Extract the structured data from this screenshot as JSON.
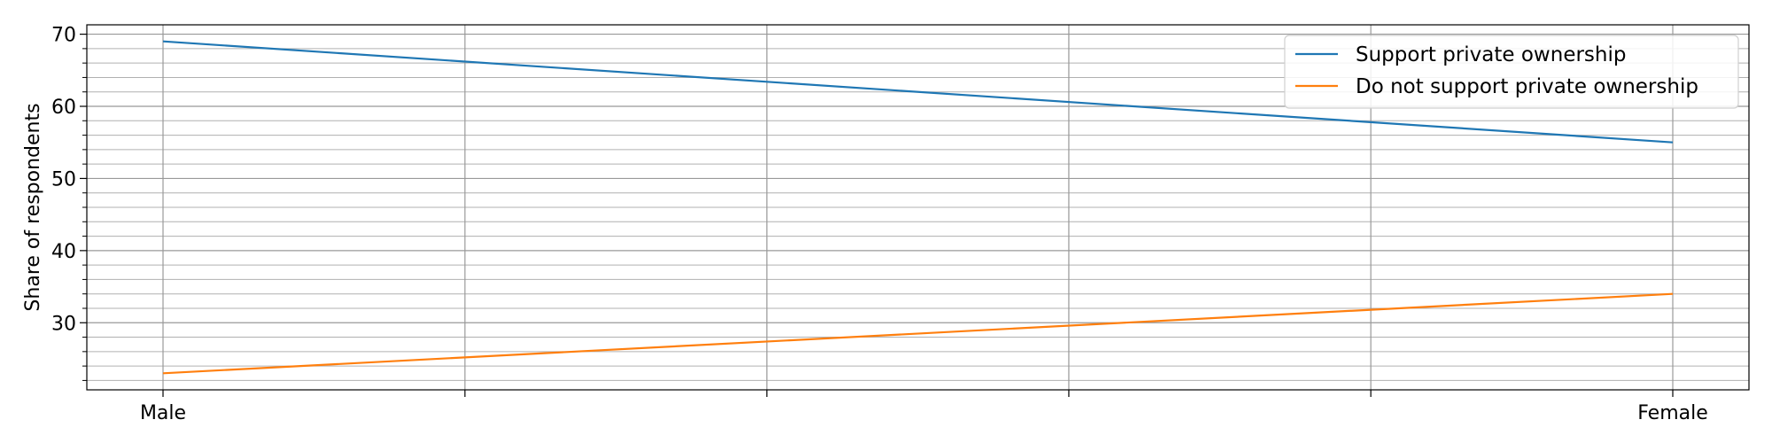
{
  "chart_data": {
    "type": "line",
    "title": "",
    "xlabel": "",
    "ylabel": "Share of respondents",
    "categories": [
      "Male",
      "Female"
    ],
    "series": [
      {
        "name": "Support private ownership",
        "values": [
          69,
          55
        ]
      },
      {
        "name": "Do not support private ownership",
        "values": [
          23,
          34
        ]
      }
    ],
    "ylim": [
      20.7,
      71.3
    ],
    "yticks": [
      30,
      40,
      50,
      60,
      70
    ],
    "ytick_labels": [
      "30",
      "40",
      "50",
      "60",
      "70"
    ],
    "xtick_labels": [
      "Male",
      "",
      "",
      "",
      "",
      "Female"
    ],
    "grid": true,
    "minor_grid": true,
    "legend_position": "top-right",
    "colors": [
      "#1f77b4",
      "#ff7f0e"
    ]
  }
}
